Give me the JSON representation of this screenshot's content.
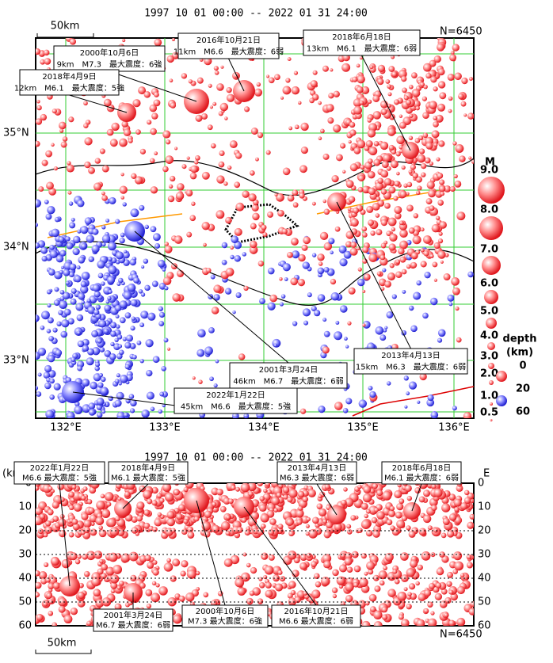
{
  "map": {
    "title": "1997 10 01 00:00 -- 2022 01 31 24:00",
    "count": "N=6450",
    "scale": "50km",
    "lat_labels": [
      "35°N",
      "34°N",
      "33°N"
    ],
    "lon_labels": [
      "132°E",
      "133°E",
      "134°E",
      "135°E",
      "136°E"
    ],
    "annotations": [
      {
        "date": "2000年10月6日",
        "detail": "9km　M7.3　最大震度：6強"
      },
      {
        "date": "2018年4月9日",
        "detail": "12km　M6.1　最大震度：5強"
      },
      {
        "date": "2016年10月21日",
        "detail": "11km　M6.6　最大震度：6弱"
      },
      {
        "date": "2018年6月18日",
        "detail": "13km　M6.1　最大震度：6弱"
      },
      {
        "date": "2001年3月24日",
        "detail": "46km　M6.7　最大震度：6弱"
      },
      {
        "date": "2013年4月13日",
        "detail": "15km　M6.3　最大震度：6弱"
      },
      {
        "date": "2022年1月22日",
        "detail": "45km　M6.6　最大震度：5強"
      }
    ]
  },
  "legend": {
    "magnitude_title": "M",
    "magnitudes": [
      "9.0",
      "8.0",
      "7.0",
      "6.0",
      "5.0",
      "4.0",
      "3.0",
      "2.0",
      "1.0",
      "0.5"
    ],
    "depth_title": "depth",
    "depth_unit": "(km)",
    "depths": [
      "0",
      "20",
      "60"
    ]
  },
  "section": {
    "title": "1997 10 01 00:00 -- 2022 01 31 24:00",
    "axis_unit": "(km)",
    "direction": "E",
    "count": "N=6450",
    "scale": "50km",
    "depth_ticks": [
      0,
      10,
      20,
      30,
      40,
      50,
      60
    ],
    "annotations": [
      {
        "date": "2022年1月22日",
        "detail": "M6.6 最大震度：5強"
      },
      {
        "date": "2018年4月9日",
        "detail": "M6.1 最大震度：5強"
      },
      {
        "date": "2013年4月13日",
        "detail": "M6.3 最大震度：6弱"
      },
      {
        "date": "2018年6月18日",
        "detail": "M6.1 最大震度：6弱"
      },
      {
        "date": "2001年3月24日",
        "detail": "M6.7 最大震度：6弱"
      },
      {
        "date": "2000年10月6日",
        "detail": "M7.3 最大震度：6強"
      },
      {
        "date": "2016年10月21日",
        "detail": "M6.6 最大震度：6弱"
      }
    ]
  }
}
